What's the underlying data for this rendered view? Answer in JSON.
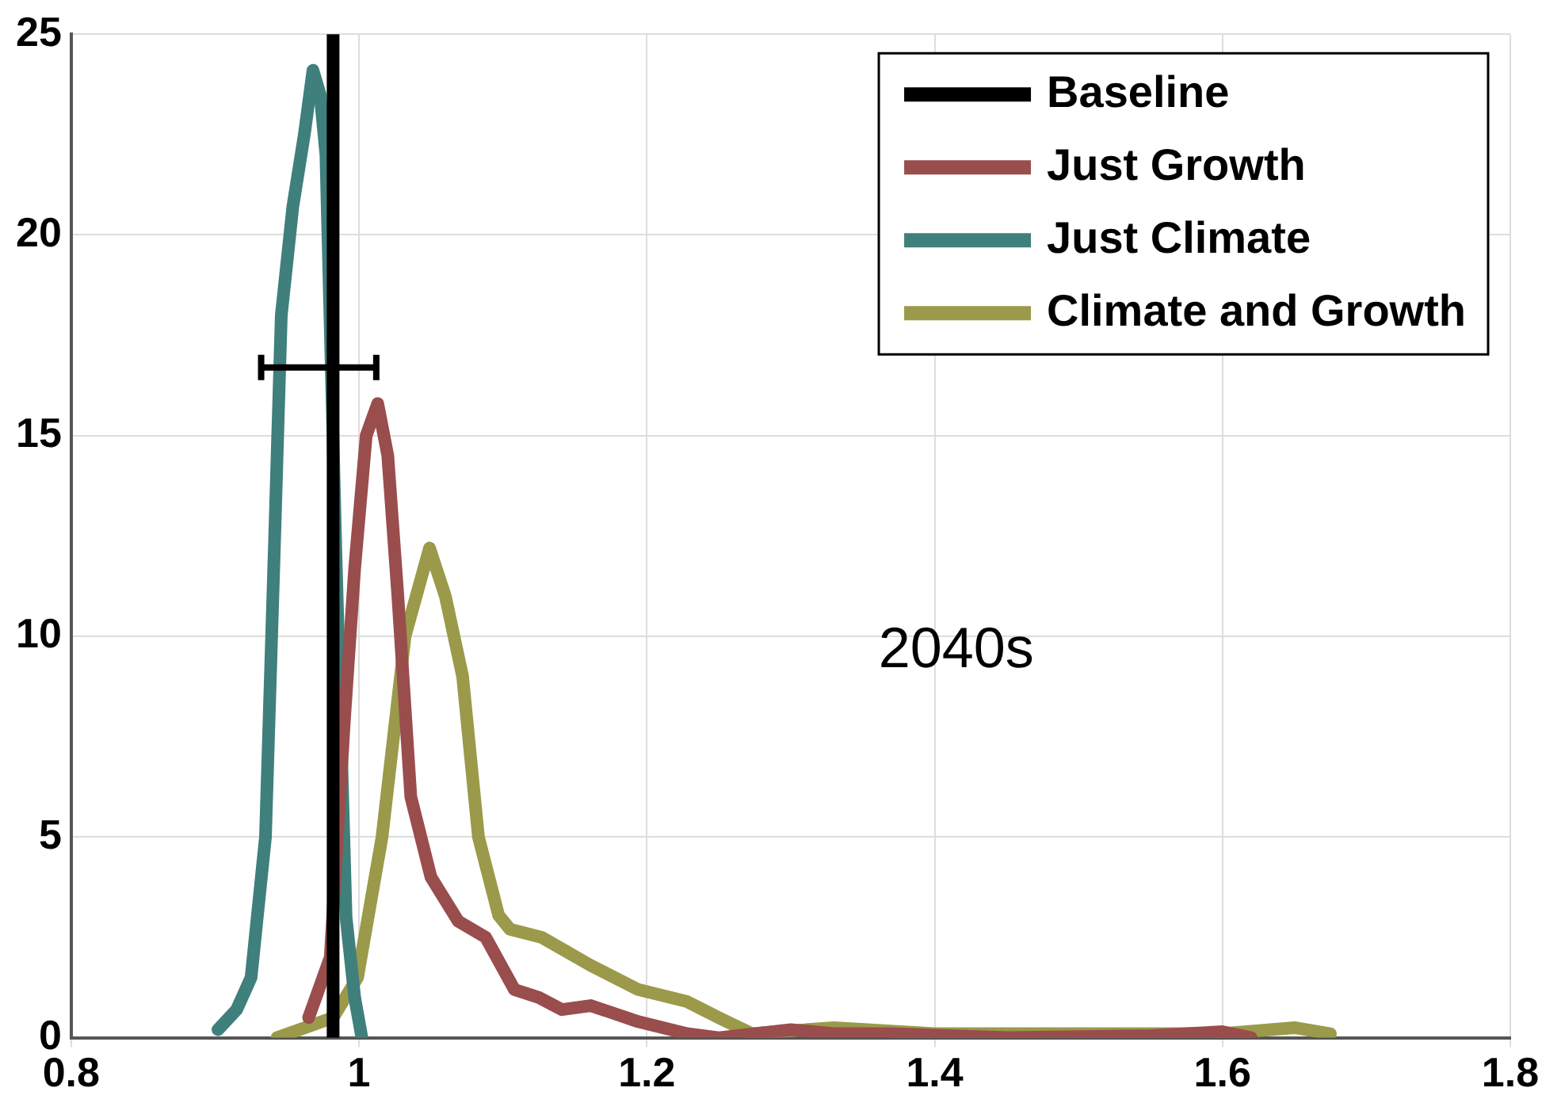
{
  "chart_data": {
    "type": "line",
    "xlim": [
      0.8,
      1.8
    ],
    "xticks": [
      0.8,
      1,
      1.2,
      1.4,
      1.6,
      1.8
    ],
    "ylim": [
      0,
      25
    ],
    "yticks": [
      0,
      5,
      10,
      15,
      20,
      25
    ],
    "grid": true,
    "legend": "top right",
    "marker": "none",
    "line_style": "solid",
    "annotations": [
      "2040s"
    ],
    "series": [
      {
        "name": "Baseline",
        "color": "#000000",
        "x": [
          0.982,
          0.982,
          0.982
        ],
        "values": [
          0,
          16.7,
          25
        ],
        "xerrors": [
          null,
          [
            0.932,
            1.012
          ],
          null
        ]
      },
      {
        "name": "Just Growth",
        "color": "#9a4d4d",
        "x": [
          0.965,
          0.98,
          0.99,
          0.997,
          1.005,
          1.013,
          1.02,
          1.027,
          1.036,
          1.05,
          1.069,
          1.088,
          1.108,
          1.125,
          1.141,
          1.161,
          1.194,
          1.228,
          1.25,
          1.3,
          1.33,
          1.37,
          1.45,
          1.55,
          1.6,
          1.62
        ],
        "values": [
          0.5,
          2,
          8,
          11.7,
          15,
          15.8,
          14.5,
          11,
          6,
          4,
          2.9,
          2.5,
          1.2,
          1,
          0.7,
          0.8,
          0.4,
          0.1,
          0,
          0.2,
          0.1,
          0.1,
          0,
          0.05,
          0.15,
          0
        ]
      },
      {
        "name": "Just Climate",
        "color": "#3f7f7c",
        "x": [
          0.902,
          0.915,
          0.925,
          0.935,
          0.941,
          0.946,
          0.954,
          0.962,
          0.968,
          0.973,
          0.977,
          0.984,
          0.991,
          0.997,
          1.002
        ],
        "values": [
          0.2,
          0.7,
          1.5,
          5,
          12,
          18,
          20.7,
          22.5,
          24.1,
          23.5,
          22,
          12,
          3,
          1,
          0
        ],
        "line_style": "solid"
      },
      {
        "name": "Climate and Growth",
        "color": "#9a9a4a",
        "x": [
          0.943,
          0.982,
          0.999,
          1.016,
          1.032,
          1.049,
          1.06,
          1.072,
          1.083,
          1.097,
          1.105,
          1.127,
          1.161,
          1.194,
          1.228,
          1.25,
          1.273,
          1.33,
          1.4,
          1.5,
          1.6,
          1.65,
          1.675
        ],
        "values": [
          0,
          0.5,
          1.5,
          5,
          10,
          12.2,
          11,
          9,
          5,
          3.05,
          2.7,
          2.5,
          1.8,
          1.2,
          0.9,
          0.5,
          0.1,
          0.25,
          0.1,
          0.1,
          0.1,
          0.25,
          0.1
        ]
      }
    ]
  }
}
